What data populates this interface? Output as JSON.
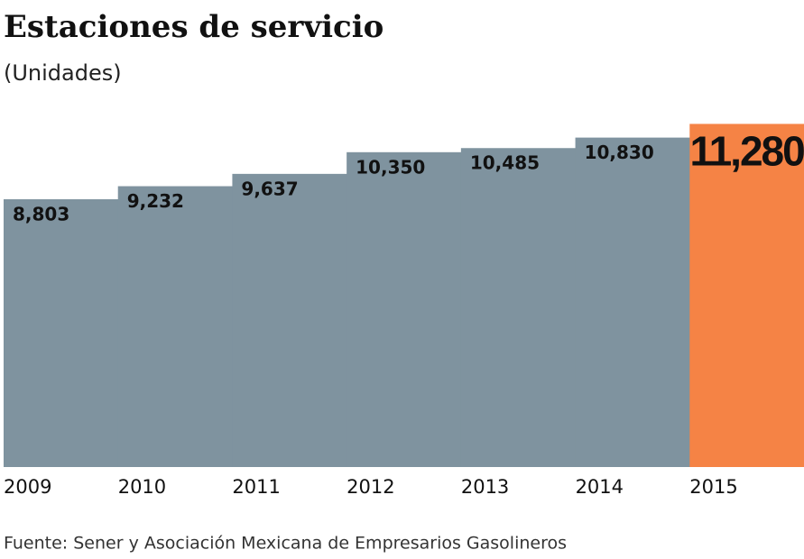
{
  "chart_data": {
    "type": "bar",
    "title": "Estaciones de servicio",
    "subtitle": "(Unidades)",
    "source": "Fuente: Sener y Asociación Mexicana de Empresarios Gasolineros",
    "categories": [
      "2009",
      "2010",
      "2011",
      "2012",
      "2013",
      "2014",
      "2015"
    ],
    "values": [
      8803,
      9232,
      9637,
      10350,
      10485,
      10830,
      11280
    ],
    "value_labels": [
      "8,803",
      "9,232",
      "9,637",
      "10,350",
      "10,485",
      "10,830",
      "11,280"
    ],
    "colors": [
      "#7f939f",
      "#7f939f",
      "#7f939f",
      "#7f939f",
      "#7f939f",
      "#7f939f",
      "#f58345"
    ],
    "ylim": [
      0,
      11500
    ]
  }
}
